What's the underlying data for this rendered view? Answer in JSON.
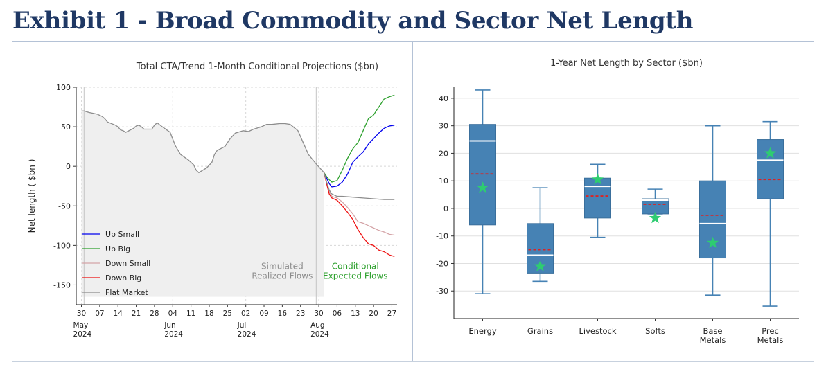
{
  "page": {
    "title": "Exhibit 1 - Broad Commodity and Sector Net Length"
  },
  "chart_data": [
    {
      "type": "line",
      "title": "Total CTA/Trend 1-Month Conditional Projections ($bn)",
      "ylabel": "Net length ( $bn )",
      "xlabel": "",
      "ylim": [
        -175,
        100
      ],
      "yticks": [
        -150,
        -100,
        -50,
        0,
        50,
        100
      ],
      "xlim": [
        "2024-04-28",
        "2024-08-29"
      ],
      "grid": true,
      "legend_position": "bottom-left",
      "x_ticks": [
        {
          "date": "2024-04-30",
          "label": "30",
          "month": "May",
          "year": "2024"
        },
        {
          "date": "2024-05-07",
          "label": "07"
        },
        {
          "date": "2024-05-14",
          "label": "14"
        },
        {
          "date": "2024-05-21",
          "label": "21"
        },
        {
          "date": "2024-05-28",
          "label": "28"
        },
        {
          "date": "2024-06-04",
          "label": "04",
          "month": "Jun",
          "year": "2024"
        },
        {
          "date": "2024-06-11",
          "label": "11"
        },
        {
          "date": "2024-06-18",
          "label": "18"
        },
        {
          "date": "2024-06-25",
          "label": "25"
        },
        {
          "date": "2024-07-02",
          "label": "02",
          "month": "Jul",
          "year": "2024"
        },
        {
          "date": "2024-07-09",
          "label": "09"
        },
        {
          "date": "2024-07-16",
          "label": "16"
        },
        {
          "date": "2024-07-23",
          "label": "23"
        },
        {
          "date": "2024-07-30",
          "label": "30",
          "month": "Aug",
          "year": "2024"
        },
        {
          "date": "2024-08-06",
          "label": "06"
        },
        {
          "date": "2024-08-13",
          "label": "13"
        },
        {
          "date": "2024-08-20",
          "label": "20"
        },
        {
          "date": "2024-08-27",
          "label": "27"
        }
      ],
      "vlines": [
        "2024-05-01",
        "2024-07-29"
      ],
      "annotations": [
        {
          "lines": [
            "Simulated",
            "Realized Flows"
          ],
          "color": "#8c8c8c",
          "at": [
            "2024-07-16",
            -130
          ]
        },
        {
          "lines": [
            "Conditional",
            "Expected Flows"
          ],
          "color": "#2ca02c",
          "at": [
            "2024-08-13",
            -130
          ]
        }
      ],
      "historical": {
        "name": "Flat Market",
        "color": "#8c8c8c",
        "fill_color": "#efefef",
        "fill_to": -165,
        "points": [
          [
            "2024-04-30",
            70
          ],
          [
            "2024-05-01",
            70
          ],
          [
            "2024-05-03",
            68
          ],
          [
            "2024-05-06",
            66
          ],
          [
            "2024-05-08",
            63
          ],
          [
            "2024-05-09",
            60
          ],
          [
            "2024-05-10",
            56
          ],
          [
            "2024-05-13",
            52
          ],
          [
            "2024-05-14",
            50
          ],
          [
            "2024-05-15",
            46
          ],
          [
            "2024-05-16",
            45
          ],
          [
            "2024-05-17",
            43
          ],
          [
            "2024-05-20",
            48
          ],
          [
            "2024-05-21",
            51
          ],
          [
            "2024-05-22",
            52
          ],
          [
            "2024-05-23",
            50
          ],
          [
            "2024-05-24",
            47
          ],
          [
            "2024-05-27",
            47
          ],
          [
            "2024-05-28",
            52
          ],
          [
            "2024-05-29",
            55
          ],
          [
            "2024-05-31",
            50
          ],
          [
            "2024-06-03",
            43
          ],
          [
            "2024-06-05",
            26
          ],
          [
            "2024-06-07",
            15
          ],
          [
            "2024-06-10",
            8
          ],
          [
            "2024-06-12",
            2
          ],
          [
            "2024-06-13",
            -5
          ],
          [
            "2024-06-14",
            -8
          ],
          [
            "2024-06-17",
            -2
          ],
          [
            "2024-06-19",
            5
          ],
          [
            "2024-06-20",
            15
          ],
          [
            "2024-06-21",
            20
          ],
          [
            "2024-06-24",
            25
          ],
          [
            "2024-06-26",
            35
          ],
          [
            "2024-06-28",
            42
          ],
          [
            "2024-07-01",
            45
          ],
          [
            "2024-07-03",
            44
          ],
          [
            "2024-07-05",
            47
          ],
          [
            "2024-07-08",
            50
          ],
          [
            "2024-07-10",
            53
          ],
          [
            "2024-07-12",
            53
          ],
          [
            "2024-07-15",
            54
          ],
          [
            "2024-07-17",
            54
          ],
          [
            "2024-07-19",
            53
          ],
          [
            "2024-07-22",
            45
          ],
          [
            "2024-07-24",
            30
          ],
          [
            "2024-07-26",
            15
          ],
          [
            "2024-07-29",
            3
          ],
          [
            "2024-08-01",
            -8
          ]
        ]
      },
      "series": [
        {
          "name": "Up Small",
          "color": "#0000ee",
          "points": [
            [
              "2024-08-01",
              -8
            ],
            [
              "2024-08-02",
              -15
            ],
            [
              "2024-08-03",
              -22
            ],
            [
              "2024-08-04",
              -26
            ],
            [
              "2024-08-06",
              -25
            ],
            [
              "2024-08-08",
              -20
            ],
            [
              "2024-08-10",
              -10
            ],
            [
              "2024-08-12",
              5
            ],
            [
              "2024-08-14",
              12
            ],
            [
              "2024-08-16",
              18
            ],
            [
              "2024-08-18",
              28
            ],
            [
              "2024-08-20",
              35
            ],
            [
              "2024-08-22",
              42
            ],
            [
              "2024-08-24",
              48
            ],
            [
              "2024-08-26",
              51
            ],
            [
              "2024-08-28",
              52
            ]
          ]
        },
        {
          "name": "Up Big",
          "color": "#2ca02c",
          "points": [
            [
              "2024-08-01",
              -8
            ],
            [
              "2024-08-02",
              -13
            ],
            [
              "2024-08-03",
              -17
            ],
            [
              "2024-08-04",
              -20
            ],
            [
              "2024-08-06",
              -18
            ],
            [
              "2024-08-08",
              -5
            ],
            [
              "2024-08-10",
              10
            ],
            [
              "2024-08-12",
              22
            ],
            [
              "2024-08-14",
              30
            ],
            [
              "2024-08-16",
              45
            ],
            [
              "2024-08-18",
              60
            ],
            [
              "2024-08-20",
              65
            ],
            [
              "2024-08-22",
              75
            ],
            [
              "2024-08-24",
              85
            ],
            [
              "2024-08-26",
              88
            ],
            [
              "2024-08-28",
              90
            ]
          ]
        },
        {
          "name": "Down Small",
          "color": "#d4a3a6",
          "points": [
            [
              "2024-08-01",
              -8
            ],
            [
              "2024-08-02",
              -20
            ],
            [
              "2024-08-03",
              -32
            ],
            [
              "2024-08-04",
              -38
            ],
            [
              "2024-08-06",
              -40
            ],
            [
              "2024-08-08",
              -45
            ],
            [
              "2024-08-10",
              -52
            ],
            [
              "2024-08-12",
              -60
            ],
            [
              "2024-08-14",
              -70
            ],
            [
              "2024-08-16",
              -72
            ],
            [
              "2024-08-18",
              -75
            ],
            [
              "2024-08-20",
              -78
            ],
            [
              "2024-08-22",
              -81
            ],
            [
              "2024-08-24",
              -83
            ],
            [
              "2024-08-26",
              -86
            ],
            [
              "2024-08-28",
              -87
            ]
          ]
        },
        {
          "name": "Down Big",
          "color": "#ee1111",
          "points": [
            [
              "2024-08-01",
              -8
            ],
            [
              "2024-08-02",
              -22
            ],
            [
              "2024-08-03",
              -35
            ],
            [
              "2024-08-04",
              -40
            ],
            [
              "2024-08-06",
              -43
            ],
            [
              "2024-08-08",
              -50
            ],
            [
              "2024-08-10",
              -58
            ],
            [
              "2024-08-12",
              -67
            ],
            [
              "2024-08-14",
              -80
            ],
            [
              "2024-08-16",
              -90
            ],
            [
              "2024-08-18",
              -98
            ],
            [
              "2024-08-20",
              -100
            ],
            [
              "2024-08-22",
              -106
            ],
            [
              "2024-08-24",
              -108
            ],
            [
              "2024-08-26",
              -112
            ],
            [
              "2024-08-28",
              -114
            ]
          ]
        },
        {
          "name": "Flat Market",
          "color": "#8c8c8c",
          "points": [
            [
              "2024-08-01",
              -8
            ],
            [
              "2024-08-02",
              -20
            ],
            [
              "2024-08-03",
              -30
            ],
            [
              "2024-08-04",
              -35
            ],
            [
              "2024-08-06",
              -38
            ],
            [
              "2024-08-08",
              -38
            ],
            [
              "2024-08-12",
              -39
            ],
            [
              "2024-08-16",
              -40
            ],
            [
              "2024-08-20",
              -41
            ],
            [
              "2024-08-24",
              -42
            ],
            [
              "2024-08-28",
              -42
            ]
          ]
        }
      ]
    },
    {
      "type": "box",
      "title": "1-Year Net Length by Sector ($bn)",
      "xlabel": "",
      "ylabel": "",
      "ylim": [
        -40,
        44
      ],
      "yticks": [
        -30,
        -20,
        -10,
        0,
        10,
        20,
        30,
        40
      ],
      "grid": true,
      "box_color": "#4682b4",
      "median_color": "#ffffff",
      "mean_color": "#dd2222",
      "current_color": "#2ecc71",
      "categories": [
        {
          "label": [
            "Energy"
          ],
          "whisker_low": -31,
          "q1": -6,
          "median": 24.5,
          "q3": 30.5,
          "whisker_high": 43,
          "mean": 12.5,
          "current": 7.5
        },
        {
          "label": [
            "Grains"
          ],
          "whisker_low": -26.5,
          "q1": -23.5,
          "median": -17,
          "q3": -5.5,
          "whisker_high": 7.5,
          "mean": -15,
          "current": -21
        },
        {
          "label": [
            "Livestock"
          ],
          "whisker_low": -10.5,
          "q1": -3.5,
          "median": 8,
          "q3": 11,
          "whisker_high": 16,
          "mean": 4.5,
          "current": 10.5
        },
        {
          "label": [
            "Softs"
          ],
          "whisker_low": -2,
          "q1": -2,
          "median": 3,
          "q3": 3.5,
          "whisker_high": 7,
          "mean": 1.5,
          "current": -3.5
        },
        {
          "label": [
            "Base",
            "Metals"
          ],
          "whisker_low": -31.5,
          "q1": -18,
          "median": -5.5,
          "q3": 10,
          "whisker_high": 30,
          "mean": -2.5,
          "current": -12.5
        },
        {
          "label": [
            "Prec",
            "Metals"
          ],
          "whisker_low": -35.5,
          "q1": 3.5,
          "median": 17.5,
          "q3": 25,
          "whisker_high": 31.5,
          "mean": 10.5,
          "current": 20
        }
      ]
    }
  ]
}
